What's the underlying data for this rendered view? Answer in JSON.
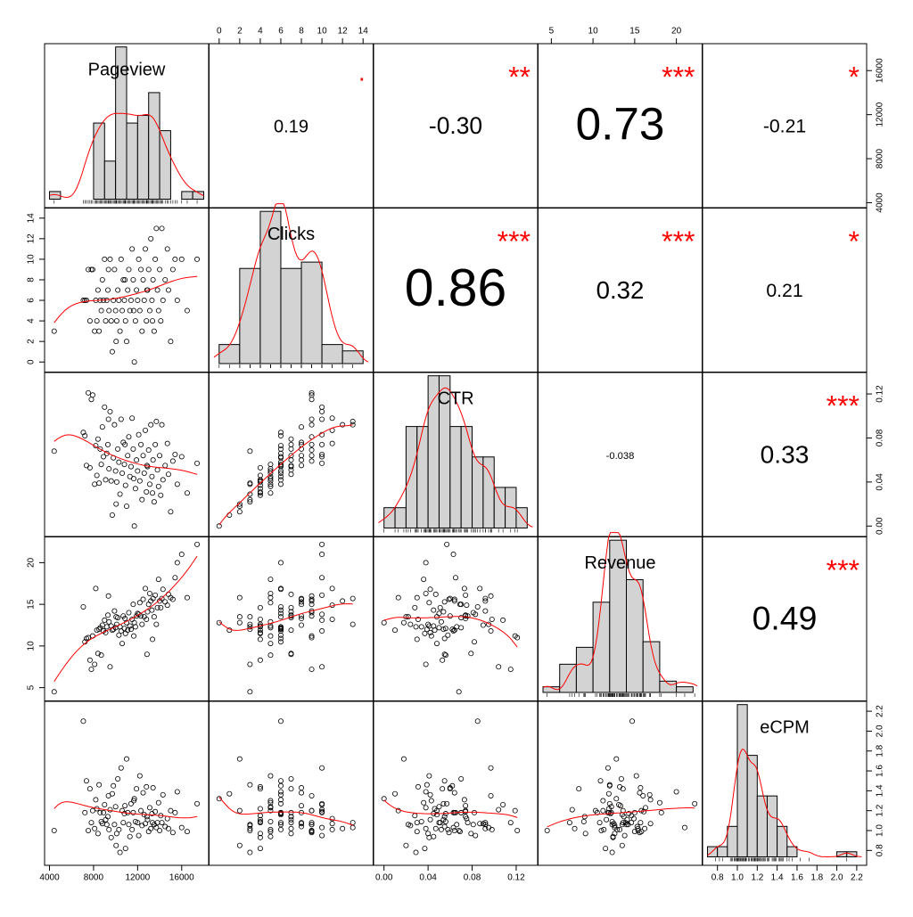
{
  "chart_data": {
    "type": "scatter-matrix",
    "title": "",
    "variables": [
      "Pageview",
      "Clicks",
      "CTR",
      "Revenue",
      "eCPM"
    ],
    "ranges": {
      "Pageview": [
        4000,
        18000
      ],
      "Clicks": [
        -0.5,
        14.5
      ],
      "CTR": [
        -0.005,
        0.135
      ],
      "Revenue": [
        4,
        22.5
      ],
      "eCPM": [
        0.7,
        2.25
      ]
    },
    "ticks": {
      "Pageview": {
        "values": [
          4000,
          8000,
          12000,
          16000
        ],
        "labels": [
          "4000",
          "8000",
          "12000",
          "16000"
        ]
      },
      "Clicks": {
        "values": [
          0,
          2,
          4,
          6,
          8,
          10,
          12,
          14
        ],
        "labels": [
          "0",
          "2",
          "4",
          "6",
          "8",
          "10",
          "12",
          "14"
        ]
      },
      "CTR": {
        "values": [
          0,
          0.04,
          0.08,
          0.12
        ],
        "labels": [
          "0.00",
          "0.04",
          "0.08",
          "0.12"
        ]
      },
      "Revenue": {
        "values": [
          5,
          10,
          15,
          20
        ],
        "labels": [
          "5",
          "10",
          "15",
          "20"
        ]
      },
      "eCPM": {
        "values": [
          0.8,
          1.0,
          1.2,
          1.4,
          1.6,
          1.8,
          2.0,
          2.2
        ],
        "labels": [
          "0.8",
          "1.0",
          "1.2",
          "1.4",
          "1.6",
          "1.8",
          "2.0",
          "2.2"
        ]
      },
      "eCPM_bottom": {
        "values": [
          0.8,
          1.0,
          1.2,
          1.4,
          1.6,
          1.8,
          2.0,
          2.2
        ],
        "labels": [
          "0.8",
          "1.0",
          "1.2",
          "1.4",
          "1.6",
          "1.8",
          "2.0",
          "2.2"
        ]
      }
    },
    "correlations": [
      {
        "row": 0,
        "col": 1,
        "value": "0.19",
        "stars": "·"
      },
      {
        "row": 0,
        "col": 2,
        "value": "-0.30",
        "stars": "**"
      },
      {
        "row": 0,
        "col": 3,
        "value": "0.73",
        "stars": "***"
      },
      {
        "row": 0,
        "col": 4,
        "value": "-0.21",
        "stars": "*"
      },
      {
        "row": 1,
        "col": 2,
        "value": "0.86",
        "stars": "***"
      },
      {
        "row": 1,
        "col": 3,
        "value": "0.32",
        "stars": "***"
      },
      {
        "row": 1,
        "col": 4,
        "value": "0.21",
        "stars": "*"
      },
      {
        "row": 2,
        "col": 3,
        "value": "-0.038",
        "stars": ""
      },
      {
        "row": 2,
        "col": 4,
        "value": "0.33",
        "stars": "***"
      },
      {
        "row": 3,
        "col": 4,
        "value": "0.49",
        "stars": "***"
      }
    ],
    "histograms": {
      "Pageview": {
        "breaks": [
          4000,
          5000,
          6000,
          7000,
          8000,
          9000,
          10000,
          11000,
          12000,
          13000,
          14000,
          15000,
          16000,
          17000,
          18000
        ],
        "counts": [
          1,
          0,
          0,
          0,
          10,
          5,
          20,
          10,
          11,
          14,
          9,
          0,
          1,
          1
        ]
      },
      "Clicks": {
        "breaks": [
          0,
          2,
          4,
          6,
          8,
          10,
          12,
          14
        ],
        "counts": [
          3,
          15,
          24,
          15,
          16,
          3,
          2
        ]
      },
      "CTR": {
        "breaks": [
          0,
          0.01,
          0.02,
          0.03,
          0.04,
          0.05,
          0.06,
          0.07,
          0.08,
          0.09,
          0.1,
          0.11,
          0.12,
          0.13
        ],
        "counts": [
          2,
          2,
          10,
          10,
          15,
          15,
          10,
          10,
          7,
          7,
          4,
          4,
          2,
          2
        ]
      },
      "Revenue": {
        "breaks": [
          4,
          6,
          8,
          10,
          12,
          14,
          16,
          18,
          20,
          22
        ],
        "counts": [
          1,
          5,
          8,
          16,
          27,
          20,
          9,
          2,
          1
        ]
      },
      "eCPM": {
        "breaks": [
          0.7,
          0.8,
          0.9,
          1.0,
          1.1,
          1.2,
          1.3,
          1.4,
          1.5,
          1.6,
          1.7,
          1.8,
          1.9,
          2.0,
          2.1,
          2.2
        ],
        "counts": [
          2,
          2,
          6,
          30,
          20,
          12,
          12,
          6,
          2,
          0,
          0,
          0,
          0,
          1,
          1
        ]
      }
    },
    "points": [
      [
        4424,
        3,
        0.068,
        4.5,
        1.0
      ],
      [
        7070,
        6,
        0.085,
        14.7,
        2.1
      ],
      [
        7214,
        6,
        0.082,
        10.5,
        1.18
      ],
      [
        7356,
        6,
        0.055,
        10.9,
        1.5
      ],
      [
        7521,
        9,
        0.121,
        11.0,
        1.0
      ],
      [
        7671,
        4,
        0.053,
        8.3,
        1.42
      ],
      [
        7800,
        9,
        0.115,
        7.2,
        1.08
      ],
      [
        7920,
        9,
        0.119,
        11.2,
        1.2
      ],
      [
        8100,
        3,
        0.038,
        7.8,
        1.02
      ],
      [
        8200,
        6,
        0.073,
        16.9,
        1.31
      ],
      [
        8300,
        4,
        0.046,
        11.9,
        1.22
      ],
      [
        8400,
        7,
        0.079,
        9.1,
        0.97
      ],
      [
        8500,
        3,
        0.039,
        12.0,
        1.46
      ],
      [
        8600,
        6,
        0.07,
        12.2,
        1.18
      ],
      [
        8700,
        5,
        0.056,
        8.9,
        1.09
      ],
      [
        8800,
        8,
        0.09,
        12.5,
        1.07
      ],
      [
        8900,
        6,
        0.063,
        11.8,
        1.18
      ],
      [
        9000,
        10,
        0.108,
        13.1,
        1.26
      ],
      [
        9100,
        4,
        0.042,
        11.6,
        1.11
      ],
      [
        9200,
        6,
        0.066,
        12.3,
        1.06
      ],
      [
        9300,
        7,
        0.074,
        13.7,
        1.14
      ],
      [
        9400,
        5,
        0.052,
        12.9,
        1.01
      ],
      [
        9500,
        10,
        0.104,
        7.5,
        1.21
      ],
      [
        9600,
        4,
        0.041,
        12.4,
        0.93
      ],
      [
        9700,
        1,
        0.01,
        11.9,
        1.37
      ],
      [
        9800,
        6,
        0.062,
        12.0,
        1.45
      ],
      [
        9900,
        9,
        0.092,
        14.2,
        1.06
      ],
      [
        10000,
        5,
        0.05,
        12.2,
        1.24
      ],
      [
        10100,
        4,
        0.04,
        12.6,
        0.97
      ],
      [
        10200,
        7,
        0.07,
        13.4,
        1.52
      ],
      [
        10300,
        6,
        0.058,
        11.3,
        1.01
      ],
      [
        10400,
        3,
        0.029,
        12.3,
        0.78
      ],
      [
        10500,
        10,
        0.097,
        11.8,
        1.63
      ],
      [
        10600,
        5,
        0.048,
        10.3,
        1.2
      ],
      [
        10700,
        8,
        0.076,
        13.6,
        1.08
      ],
      [
        10800,
        6,
        0.056,
        12.1,
        1.17
      ],
      [
        10900,
        4,
        0.037,
        11.5,
        0.82
      ],
      [
        11000,
        2,
        0.018,
        12.8,
        1.72
      ],
      [
        11100,
        7,
        0.064,
        11.9,
        1.18
      ],
      [
        11200,
        9,
        0.081,
        14.0,
        1.06
      ],
      [
        11300,
        5,
        0.045,
        12.4,
        0.94
      ],
      [
        11400,
        6,
        0.054,
        12.0,
        1.27
      ],
      [
        11500,
        11,
        0.098,
        13.2,
        1.01
      ],
      [
        11600,
        8,
        0.07,
        15.0,
        1.18
      ],
      [
        11700,
        0,
        0.0,
        12.8,
        1.32
      ],
      [
        11800,
        4,
        0.034,
        12.3,
        1.09
      ],
      [
        11900,
        7,
        0.06,
        13.6,
        1.42
      ],
      [
        12000,
        6,
        0.05,
        13.9,
        1.08
      ],
      [
        12100,
        10,
        0.083,
        13.8,
        0.95
      ],
      [
        12200,
        5,
        0.041,
        15.2,
        1.55
      ],
      [
        12300,
        9,
        0.074,
        13.6,
        1.2
      ],
      [
        12400,
        3,
        0.024,
        12.6,
        1.05
      ],
      [
        12500,
        8,
        0.064,
        15.6,
        1.38
      ],
      [
        12600,
        6,
        0.048,
        13.5,
        1.16
      ],
      [
        12700,
        11,
        0.087,
        16.9,
        1.07
      ],
      [
        12800,
        4,
        0.031,
        13.2,
        1.44
      ],
      [
        12900,
        7,
        0.054,
        14.1,
        1.11
      ],
      [
        13000,
        9,
        0.069,
        15.0,
        0.99
      ],
      [
        13100,
        5,
        0.038,
        16.3,
        1.23
      ],
      [
        13200,
        12,
        0.092,
        15.4,
        1.02
      ],
      [
        13300,
        6,
        0.045,
        14.3,
        1.17
      ],
      [
        13400,
        8,
        0.06,
        15.7,
        1.43
      ],
      [
        13500,
        3,
        0.022,
        13.5,
        1.06
      ],
      [
        13600,
        10,
        0.074,
        16.1,
        1.19
      ],
      [
        13700,
        13,
        0.095,
        12.6,
        1.03
      ],
      [
        13800,
        7,
        0.051,
        14.6,
        1.08
      ],
      [
        13900,
        5,
        0.036,
        18.0,
        1.28
      ],
      [
        14000,
        9,
        0.064,
        15.4,
        1.0
      ],
      [
        14100,
        4,
        0.028,
        14.6,
        1.15
      ],
      [
        14200,
        13,
        0.092,
        15.7,
        1.08
      ],
      [
        14300,
        6,
        0.042,
        16.8,
        1.36
      ],
      [
        14500,
        8,
        0.055,
        15.3,
        1.04
      ],
      [
        14700,
        11,
        0.075,
        14.9,
        1.12
      ],
      [
        14800,
        7,
        0.047,
        16.2,
        1.02
      ],
      [
        15000,
        2,
        0.013,
        15.8,
        1.2
      ],
      [
        15200,
        9,
        0.059,
        15.6,
        0.98
      ],
      [
        15400,
        10,
        0.065,
        18.2,
        1.18
      ],
      [
        15600,
        6,
        0.038,
        20.0,
        1.39
      ],
      [
        16000,
        10,
        0.063,
        21.0,
        1.03
      ],
      [
        16500,
        5,
        0.03,
        15.8,
        0.99
      ],
      [
        17400,
        10,
        0.057,
        22.2,
        1.27
      ],
      [
        10050,
        2,
        0.02,
        13.5,
        0.85
      ],
      [
        9350,
        9,
        0.097,
        16.0,
        1.35
      ],
      [
        11650,
        5,
        0.043,
        11.2,
        1.3
      ],
      [
        12850,
        7,
        0.055,
        9.0,
        1.14
      ],
      [
        13350,
        4,
        0.03,
        10.8,
        1.08
      ],
      [
        10850,
        8,
        0.074,
        13.3,
        1.25
      ]
    ],
    "panels": {
      "diagonal": "histogram with density curve and rug",
      "lower": "scatterplot with lowess smoother",
      "upper": "correlation coefficient with significance stars"
    }
  }
}
